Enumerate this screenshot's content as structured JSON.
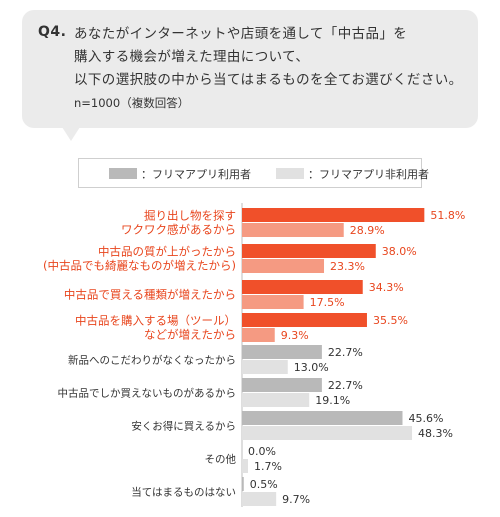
{
  "question": {
    "label": "Q4.",
    "lines": [
      "あなたがインターネットや店頭を通して「中古品」を",
      "購入する機会が増えた理由について、",
      "以下の選択肢の中から当てはまるものを全てお選びください。"
    ],
    "note": "n=1000（複数回答）"
  },
  "legend": {
    "series_a": "：フリマアプリ利用者",
    "series_b": "：フリマアプリ非利用者"
  },
  "colors": {
    "highlight_a": "#f0502a",
    "highlight_b": "#f59a82",
    "normal_a": "#b9b9b9",
    "normal_b": "#e1e1e1",
    "highlight_text": "#e8461e",
    "normal_text": "#333333"
  },
  "chart_data": {
    "type": "bar",
    "orientation": "horizontal",
    "categories": [
      [
        "掘り出し物を探す",
        "ワクワク感があるから"
      ],
      [
        "中古品の質が上がったから",
        "(中古品でも綺麗なものが増えたから)"
      ],
      [
        "中古品で買える種類が増えたから"
      ],
      [
        "中古品を購入する場（ツール）",
        "などが増えたから"
      ],
      [
        "新品へのこだわりがなくなったから"
      ],
      [
        "中古品でしか買えないものがあるから"
      ],
      [
        "安くお得に買えるから"
      ],
      [
        "その他"
      ],
      [
        "当てはまるものはない"
      ]
    ],
    "highlighted": [
      true,
      true,
      true,
      true,
      false,
      false,
      false,
      false,
      false
    ],
    "series": [
      {
        "name": "フリマアプリ利用者",
        "values": [
          51.8,
          38.0,
          34.3,
          35.5,
          22.7,
          22.7,
          45.6,
          0.0,
          0.5
        ]
      },
      {
        "name": "フリマアプリ非利用者",
        "values": [
          28.9,
          23.3,
          17.5,
          9.3,
          13.0,
          19.1,
          48.3,
          1.7,
          9.7
        ]
      }
    ],
    "value_suffix": "%",
    "xlim": [
      0,
      100
    ]
  }
}
